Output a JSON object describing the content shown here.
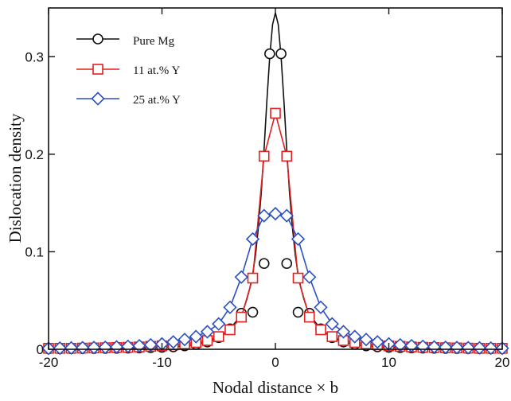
{
  "chart_data": {
    "type": "line",
    "xlabel": "Nodal distance × b",
    "ylabel": "Dislocation density",
    "xlim": [
      -20,
      20
    ],
    "ylim": [
      0,
      0.35
    ],
    "xticks": [
      -20,
      -10,
      0,
      10,
      20
    ],
    "xtick_labels": [
      "-20",
      "-10",
      "0",
      "10",
      "20"
    ],
    "yticks": [
      0,
      0.1,
      0.2,
      0.3
    ],
    "ytick_labels": [
      "0",
      "0.1",
      "0.2",
      "0.3"
    ],
    "legend_position": "top-left",
    "grid": false,
    "series": [
      {
        "name": "Pure Mg",
        "color": "#111111",
        "marker": "circle",
        "curve_x": [
          -20,
          -18,
          -16,
          -14,
          -12,
          -10,
          -9,
          -8,
          -7,
          -6,
          -5,
          -4.5,
          -4,
          -3.5,
          -3,
          -2.75,
          -2.5,
          -2.25,
          -2,
          -1.75,
          -1.5,
          -1.25,
          -1,
          -0.75,
          -0.5,
          -0.25,
          0,
          0.25,
          0.5,
          0.75,
          1,
          1.25,
          1.5,
          1.75,
          2,
          2.25,
          2.5,
          2.75,
          3,
          3.5,
          4,
          4.5,
          5,
          6,
          7,
          8,
          9,
          10,
          12,
          14,
          16,
          18,
          20
        ],
        "curve_y": [
          0.0005,
          0.0006,
          0.0008,
          0.001,
          0.0014,
          0.002,
          0.0025,
          0.0035,
          0.005,
          0.0075,
          0.012,
          0.016,
          0.021,
          0.028,
          0.037,
          0.043,
          0.052,
          0.063,
          0.077,
          0.097,
          0.125,
          0.16,
          0.205,
          0.255,
          0.3,
          0.333,
          0.345,
          0.333,
          0.3,
          0.255,
          0.205,
          0.16,
          0.125,
          0.097,
          0.077,
          0.063,
          0.052,
          0.043,
          0.037,
          0.028,
          0.021,
          0.016,
          0.012,
          0.0075,
          0.005,
          0.0035,
          0.0025,
          0.002,
          0.0014,
          0.001,
          0.0008,
          0.0006,
          0.0005
        ],
        "marker_x": [
          -20,
          -19,
          -18,
          -17,
          -16,
          -15,
          -14,
          -13,
          -12,
          -11,
          -10,
          -9,
          -8,
          -7,
          -6,
          -5,
          -4,
          -3,
          -2,
          -1,
          -0.5,
          0.5,
          1,
          2,
          3,
          4,
          5,
          6,
          7,
          8,
          9,
          10,
          11,
          12,
          13,
          14,
          15,
          16,
          17,
          18,
          19,
          20
        ],
        "marker_y": [
          0.0005,
          0.0005,
          0.0006,
          0.0007,
          0.0008,
          0.0009,
          0.001,
          0.0012,
          0.0014,
          0.0017,
          0.002,
          0.0025,
          0.0035,
          0.005,
          0.0075,
          0.012,
          0.021,
          0.037,
          0.038,
          0.088,
          0.303,
          0.303,
          0.088,
          0.038,
          0.037,
          0.021,
          0.012,
          0.0075,
          0.005,
          0.0035,
          0.0025,
          0.002,
          0.0017,
          0.0014,
          0.0012,
          0.001,
          0.0009,
          0.0008,
          0.0007,
          0.0006,
          0.0005,
          0.0005
        ]
      },
      {
        "name": "11 at.% Y",
        "color": "#e0211f",
        "marker": "square",
        "curve_x": [
          -20,
          -19,
          -18,
          -17,
          -16,
          -15,
          -14,
          -13,
          -12,
          -11,
          -10,
          -9,
          -8,
          -7,
          -6,
          -5,
          -4,
          -3,
          -2,
          -1,
          0,
          1,
          2,
          3,
          4,
          5,
          6,
          7,
          8,
          9,
          10,
          11,
          12,
          13,
          14,
          15,
          16,
          17,
          18,
          19,
          20
        ],
        "curve_y": [
          0.001,
          0.001,
          0.001,
          0.0012,
          0.0014,
          0.0016,
          0.0018,
          0.002,
          0.0024,
          0.003,
          0.0035,
          0.0045,
          0.0055,
          0.007,
          0.009,
          0.013,
          0.02,
          0.033,
          0.073,
          0.198,
          0.242,
          0.198,
          0.073,
          0.033,
          0.02,
          0.013,
          0.009,
          0.007,
          0.0055,
          0.0045,
          0.0035,
          0.003,
          0.0024,
          0.002,
          0.0018,
          0.0016,
          0.0014,
          0.0012,
          0.001,
          0.001,
          0.001
        ],
        "marker_x": [
          -20,
          -19,
          -18,
          -17,
          -16,
          -15,
          -14,
          -13,
          -12,
          -11,
          -10,
          -9,
          -8,
          -7,
          -6,
          -5,
          -4,
          -3,
          -2,
          -1,
          0,
          1,
          2,
          3,
          4,
          5,
          6,
          7,
          8,
          9,
          10,
          11,
          12,
          13,
          14,
          15,
          16,
          17,
          18,
          19,
          20
        ],
        "marker_y": [
          0.001,
          0.001,
          0.001,
          0.0012,
          0.0014,
          0.0016,
          0.0018,
          0.002,
          0.0024,
          0.003,
          0.0035,
          0.0045,
          0.0055,
          0.007,
          0.009,
          0.013,
          0.02,
          0.033,
          0.073,
          0.198,
          0.242,
          0.198,
          0.073,
          0.033,
          0.02,
          0.013,
          0.009,
          0.007,
          0.0055,
          0.0045,
          0.0035,
          0.003,
          0.0024,
          0.002,
          0.0018,
          0.0016,
          0.0014,
          0.0012,
          0.001,
          0.001,
          0.001
        ]
      },
      {
        "name": "25 at.% Y",
        "color": "#2b4fc4",
        "marker": "diamond",
        "curve_x": [
          -20,
          -19,
          -18,
          -17,
          -16,
          -15,
          -14,
          -13,
          -12,
          -11,
          -10,
          -9,
          -8,
          -7,
          -6,
          -5,
          -4,
          -3,
          -2,
          -1,
          0,
          1,
          2,
          3,
          4,
          5,
          6,
          7,
          8,
          9,
          10,
          11,
          12,
          13,
          14,
          15,
          16,
          17,
          18,
          19,
          20
        ],
        "curve_y": [
          0.001,
          0.0012,
          0.0014,
          0.0016,
          0.0018,
          0.002,
          0.0024,
          0.003,
          0.0036,
          0.0045,
          0.0055,
          0.0075,
          0.01,
          0.013,
          0.018,
          0.026,
          0.043,
          0.074,
          0.113,
          0.137,
          0.139,
          0.137,
          0.113,
          0.074,
          0.043,
          0.026,
          0.018,
          0.013,
          0.01,
          0.0075,
          0.0055,
          0.0045,
          0.0036,
          0.003,
          0.0024,
          0.002,
          0.0018,
          0.0016,
          0.0014,
          0.0012,
          0.001
        ],
        "marker_x": [
          -20,
          -19,
          -18,
          -17,
          -16,
          -15,
          -14,
          -13,
          -12,
          -11,
          -10,
          -9,
          -8,
          -7,
          -6,
          -5,
          -4,
          -3,
          -2,
          -1,
          0,
          1,
          2,
          3,
          4,
          5,
          6,
          7,
          8,
          9,
          10,
          11,
          12,
          13,
          14,
          15,
          16,
          17,
          18,
          19,
          20
        ],
        "marker_y": [
          0.001,
          0.0012,
          0.0014,
          0.0016,
          0.0018,
          0.002,
          0.0024,
          0.003,
          0.0036,
          0.0045,
          0.0055,
          0.0075,
          0.01,
          0.013,
          0.018,
          0.026,
          0.043,
          0.074,
          0.113,
          0.137,
          0.139,
          0.137,
          0.113,
          0.074,
          0.043,
          0.026,
          0.018,
          0.013,
          0.01,
          0.0075,
          0.0055,
          0.0045,
          0.0036,
          0.003,
          0.0024,
          0.002,
          0.0018,
          0.0016,
          0.0014,
          0.0012,
          0.001
        ]
      }
    ]
  }
}
